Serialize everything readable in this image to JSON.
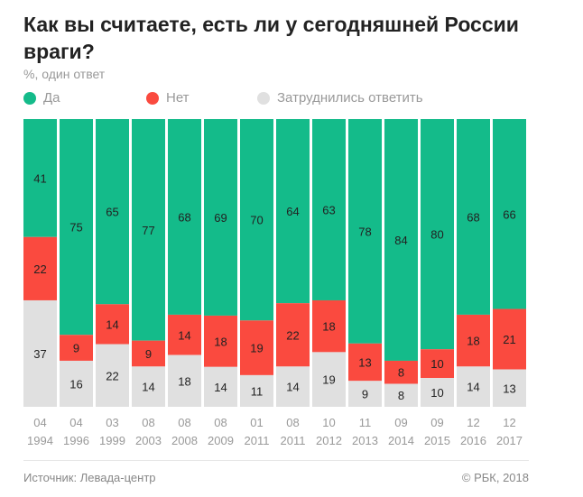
{
  "chart_data": {
    "type": "bar",
    "stacked": true,
    "title": "Как вы считаете, есть ли у сегодняшней России враги?",
    "subtitle": "%, один ответ",
    "categories": [
      [
        "04",
        "1994"
      ],
      [
        "04",
        "1996"
      ],
      [
        "03",
        "1999"
      ],
      [
        "08",
        "2003"
      ],
      [
        "08",
        "2008"
      ],
      [
        "08",
        "2009"
      ],
      [
        "01",
        "2011"
      ],
      [
        "08",
        "2011"
      ],
      [
        "10",
        "2012"
      ],
      [
        "11",
        "2013"
      ],
      [
        "09",
        "2014"
      ],
      [
        "09",
        "2015"
      ],
      [
        "12",
        "2016"
      ],
      [
        "12",
        "2017"
      ]
    ],
    "series": [
      {
        "name": "Да",
        "color": "#14bb8a",
        "values": [
          41,
          75,
          65,
          77,
          68,
          69,
          70,
          64,
          63,
          78,
          84,
          80,
          68,
          66
        ]
      },
      {
        "name": "Нет",
        "color": "#fa4a3f",
        "values": [
          22,
          9,
          14,
          9,
          14,
          18,
          19,
          22,
          18,
          13,
          8,
          10,
          18,
          21
        ]
      },
      {
        "name": "Затруднились ответить",
        "color": "#e0e0e0",
        "values": [
          37,
          16,
          22,
          14,
          18,
          14,
          11,
          14,
          19,
          9,
          8,
          10,
          14,
          13
        ]
      }
    ],
    "ylim": [
      0,
      100
    ],
    "grid": false,
    "legend": "top-left"
  },
  "footer": {
    "source": "Источник: Левада-центр",
    "copyright": "© РБК, 2018"
  }
}
